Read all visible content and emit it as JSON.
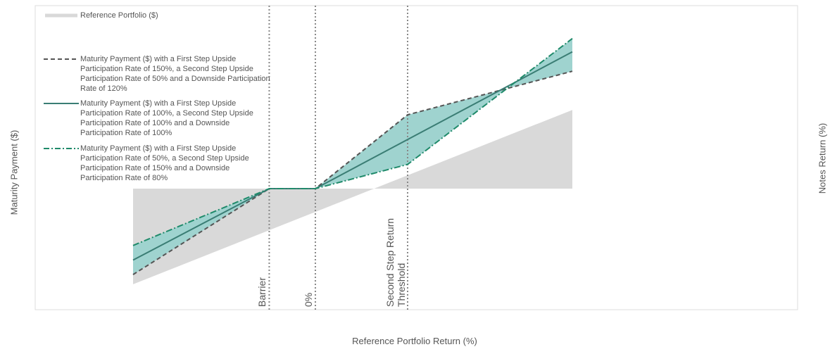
{
  "chart_data": {
    "type": "line",
    "title": "",
    "xlabel": "Reference Portfolio Return (%)",
    "ylabel": "Maturity Payment ($)",
    "ylabel_right": "Notes Return (%)",
    "grid": false,
    "legend_position": "top-left",
    "xlim": [
      -100,
      100
    ],
    "ylim": [
      -100,
      100
    ],
    "reference_portfolio": {
      "name": "Reference Portfolio ($)",
      "color": "#d9d9d9",
      "x": [
        -100,
        100
      ],
      "y": [
        -79,
        65
      ]
    },
    "series": [
      {
        "name": "Maturity Payment ($) with a First Step Upside Participation Rate of 150%, a Second Step Upside Participation Rate of 50% and a Downside Participation Rate of 120%",
        "style": "dashed",
        "color": "#555555",
        "x": [
          -100,
          -38,
          -17,
          25,
          100
        ],
        "y": [
          -71,
          0,
          0,
          61,
          97
        ]
      },
      {
        "name": "Maturity Payment ($) with a First Step Upside Participation Rate of 100%, a Second Step Upside Participation Rate of 100% and a Downside Participation Rate of 100%",
        "style": "solid",
        "color": "#3a7d74",
        "x": [
          -100,
          -38,
          -17,
          100
        ],
        "y": [
          -59,
          0,
          0,
          113
        ]
      },
      {
        "name": "Maturity Payment ($) with a First Step Upside Participation Rate of 50%, a Second Step Upside Participation Rate of 150% and a Downside Participation Rate of 80%",
        "style": "dash-dot",
        "color": "#1f8a6a",
        "x": [
          -100,
          -38,
          -17,
          25,
          100
        ],
        "y": [
          -47,
          0,
          0,
          20,
          124
        ]
      }
    ],
    "reference_lines": [
      {
        "label": "Barrier",
        "x": -38
      },
      {
        "label": "0%",
        "x": -17
      },
      {
        "label": "Second Step Return Threshold",
        "label_lines": [
          "Second Step Return",
          "Threshold"
        ],
        "x": 25
      }
    ],
    "fill_color": "#9fd3cf"
  }
}
